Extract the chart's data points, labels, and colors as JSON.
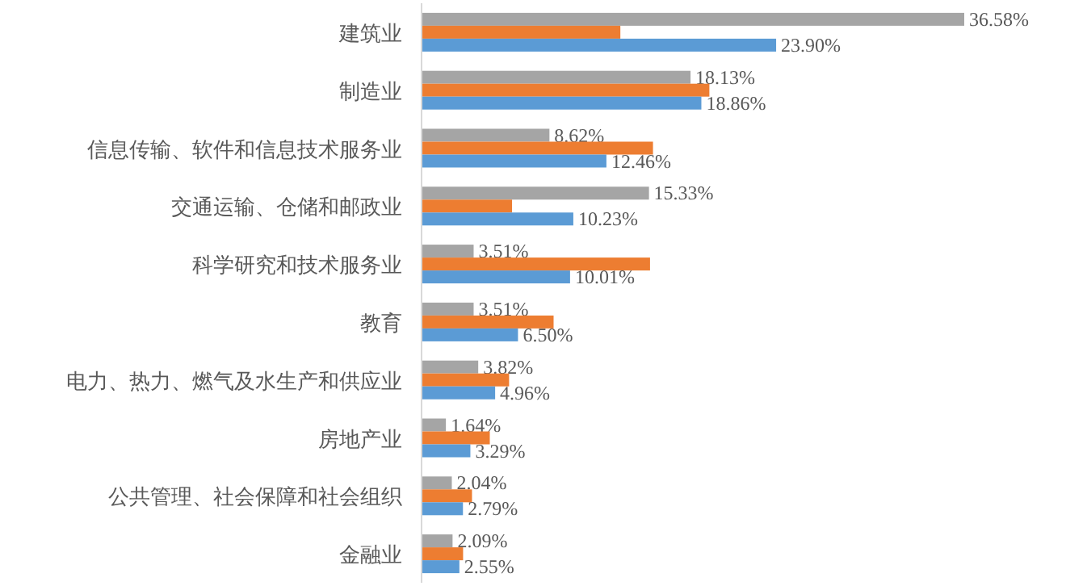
{
  "chart_data": {
    "type": "bar",
    "orientation": "horizontal",
    "tick_labels": "y",
    "categories": [
      "建筑业",
      "制造业",
      "信息传输、软件和信息技术服务业",
      "交通运输、仓储和邮政业",
      "科学研究和技术服务业",
      "教育",
      "电力、热力、燃气及水生产和供应业",
      "房地产业",
      "公共管理、社会保障和社会组织",
      "金融业"
    ],
    "series": [
      {
        "color": "#a5a5a5",
        "values": [
          36.58,
          18.13,
          8.62,
          15.33,
          3.51,
          3.51,
          3.82,
          1.64,
          2.04,
          2.09
        ],
        "value_labels": [
          "36.58%",
          "18.13%",
          "8.62%",
          "15.33%",
          "3.51%",
          "3.51%",
          "3.82%",
          "1.64%",
          "2.04%",
          "2.09%"
        ]
      },
      {
        "color": "#ed7d31",
        "values": [
          13.4,
          19.4,
          15.6,
          6.1,
          15.4,
          8.9,
          5.9,
          4.6,
          3.4,
          2.8
        ]
      },
      {
        "color": "#5b9bd5",
        "values": [
          23.9,
          18.86,
          12.46,
          10.23,
          10.01,
          6.5,
          4.96,
          3.29,
          2.79,
          2.55
        ],
        "value_labels": [
          "23.90%",
          "18.86%",
          "12.46%",
          "10.23%",
          "10.01%",
          "6.50%",
          "4.96%",
          "3.29%",
          "2.79%",
          "2.55%"
        ]
      }
    ]
  }
}
